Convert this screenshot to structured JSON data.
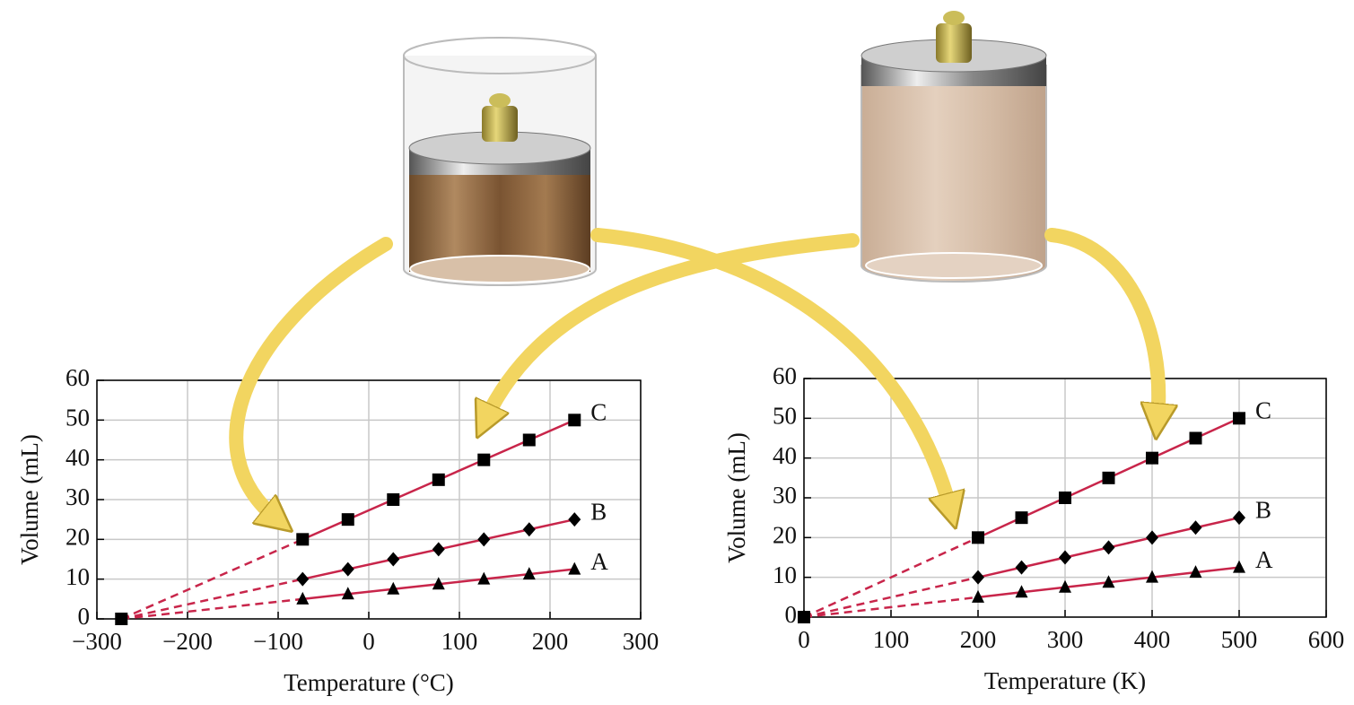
{
  "chart_data": [
    {
      "type": "line",
      "x_label": "Temperature (°C)",
      "y_label": "Volume (mL)",
      "xlim": [
        -300,
        300
      ],
      "ylim": [
        0,
        60
      ],
      "xticks": [
        {
          "value": -300,
          "label": "−300"
        },
        {
          "value": -200,
          "label": "−200"
        },
        {
          "value": -100,
          "label": "−100"
        },
        0,
        100,
        200,
        300
      ],
      "yticks": [
        0,
        10,
        20,
        30,
        40,
        50,
        60
      ],
      "grid": true,
      "line_color": "#c8254a",
      "marker_color": "#000000",
      "label_color": "#2e4fa0",
      "extrapolation_point": {
        "x": -273,
        "y": 0
      },
      "x": [
        -73,
        -23,
        27,
        77,
        127,
        177,
        227
      ],
      "series": [
        {
          "name": "A",
          "marker": "triangle",
          "values": [
            5,
            6.25,
            7.5,
            8.75,
            10,
            11.25,
            12.5
          ]
        },
        {
          "name": "B",
          "marker": "diamond",
          "values": [
            10,
            12.5,
            15,
            17.5,
            20,
            22.5,
            25
          ]
        },
        {
          "name": "C",
          "marker": "square",
          "values": [
            20,
            25,
            30,
            35,
            40,
            45,
            50
          ]
        }
      ]
    },
    {
      "type": "line",
      "x_label": "Temperature (K)",
      "y_label": "Volume (mL)",
      "xlim": [
        0,
        600
      ],
      "ylim": [
        0,
        60
      ],
      "xticks": [
        0,
        100,
        200,
        300,
        400,
        500,
        600
      ],
      "yticks": [
        0,
        10,
        20,
        30,
        40,
        50,
        60
      ],
      "grid": true,
      "line_color": "#c8254a",
      "marker_color": "#000000",
      "label_color": "#2e4fa0",
      "extrapolation_point": {
        "x": 0,
        "y": 0
      },
      "x": [
        200,
        250,
        300,
        350,
        400,
        450,
        500
      ],
      "series": [
        {
          "name": "A",
          "marker": "triangle",
          "values": [
            5,
            6.25,
            7.5,
            8.75,
            10,
            11.25,
            12.5
          ]
        },
        {
          "name": "B",
          "marker": "diamond",
          "values": [
            10,
            12.5,
            15,
            17.5,
            20,
            22.5,
            25
          ]
        },
        {
          "name": "C",
          "marker": "square",
          "values": [
            20,
            25,
            30,
            35,
            40,
            45,
            50
          ]
        }
      ]
    }
  ]
}
